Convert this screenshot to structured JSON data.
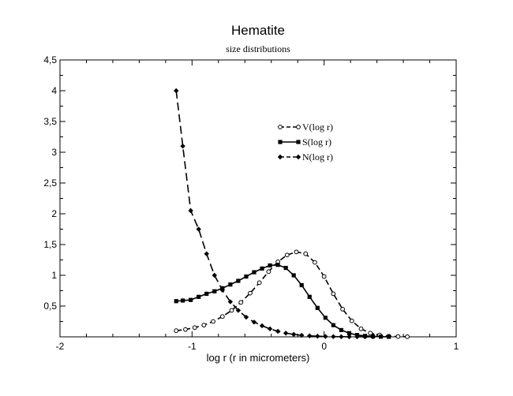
{
  "chart_data": {
    "type": "line",
    "title": "Hematite",
    "subtitle": "size distributions",
    "xlabel": "log r (r in micrometers)",
    "ylabel": "",
    "xlim": [
      -2,
      1
    ],
    "ylim": [
      0,
      4.5
    ],
    "grid": false,
    "legend_position": "upper-center",
    "xticks": [
      -2,
      -1,
      0,
      1
    ],
    "xtick_labels": [
      "-2",
      "-1",
      "0",
      "1"
    ],
    "yticks": [
      0.5,
      1,
      1.5,
      2,
      2.5,
      3,
      3.5,
      4,
      4.5
    ],
    "ytick_labels": [
      "0,5",
      "1",
      "1,5",
      "2",
      "2,5",
      "3",
      "3,5",
      "4",
      "4,5"
    ],
    "series": [
      {
        "name": "V(log r)",
        "marker": "open-circle",
        "dash": "dashed",
        "color": "#000000",
        "x": [
          -1.12,
          -1.05,
          -0.98,
          -0.91,
          -0.84,
          -0.77,
          -0.7,
          -0.63,
          -0.56,
          -0.49,
          -0.42,
          -0.35,
          -0.28,
          -0.21,
          -0.14,
          -0.07,
          0.0,
          0.07,
          0.14,
          0.21,
          0.28,
          0.35,
          0.42,
          0.49,
          0.56,
          0.63
        ],
        "y": [
          0.1,
          0.12,
          0.15,
          0.19,
          0.25,
          0.33,
          0.43,
          0.56,
          0.71,
          0.88,
          1.06,
          1.22,
          1.33,
          1.38,
          1.35,
          1.21,
          0.98,
          0.7,
          0.45,
          0.26,
          0.13,
          0.06,
          0.03,
          0.01,
          0.005,
          0.002
        ]
      },
      {
        "name": "S(log r)",
        "marker": "filled-square",
        "dash": "solid",
        "color": "#000000",
        "x": [
          -1.12,
          -1.07,
          -1.01,
          -0.95,
          -0.89,
          -0.83,
          -0.77,
          -0.71,
          -0.65,
          -0.59,
          -0.53,
          -0.47,
          -0.41,
          -0.35,
          -0.29,
          -0.23,
          -0.17,
          -0.11,
          -0.05,
          0.01,
          0.07,
          0.13,
          0.19,
          0.25,
          0.31,
          0.37,
          0.43,
          0.49
        ],
        "y": [
          0.58,
          0.59,
          0.6,
          0.65,
          0.7,
          0.74,
          0.79,
          0.85,
          0.91,
          0.98,
          1.05,
          1.11,
          1.16,
          1.17,
          1.12,
          1.0,
          0.84,
          0.65,
          0.47,
          0.31,
          0.19,
          0.11,
          0.06,
          0.03,
          0.015,
          0.007,
          0.003,
          0.001
        ]
      },
      {
        "name": "N(log r)",
        "marker": "filled-diamond",
        "dash": "long-dashed",
        "color": "#000000",
        "x": [
          -1.12,
          -1.07,
          -1.01,
          -0.95,
          -0.89,
          -0.83,
          -0.77,
          -0.71,
          -0.65,
          -0.59,
          -0.53,
          -0.47,
          -0.41,
          -0.35,
          -0.29,
          -0.23,
          -0.17,
          -0.11,
          -0.05,
          0.01,
          0.07,
          0.13,
          0.19,
          0.25,
          0.31,
          0.37
        ],
        "y": [
          4.0,
          3.1,
          2.05,
          1.75,
          1.35,
          1.0,
          0.76,
          0.57,
          0.43,
          0.32,
          0.24,
          0.18,
          0.13,
          0.09,
          0.06,
          0.04,
          0.025,
          0.016,
          0.01,
          0.006,
          0.004,
          0.002,
          0.001,
          0.001,
          0.0005,
          0.0003
        ]
      }
    ]
  }
}
